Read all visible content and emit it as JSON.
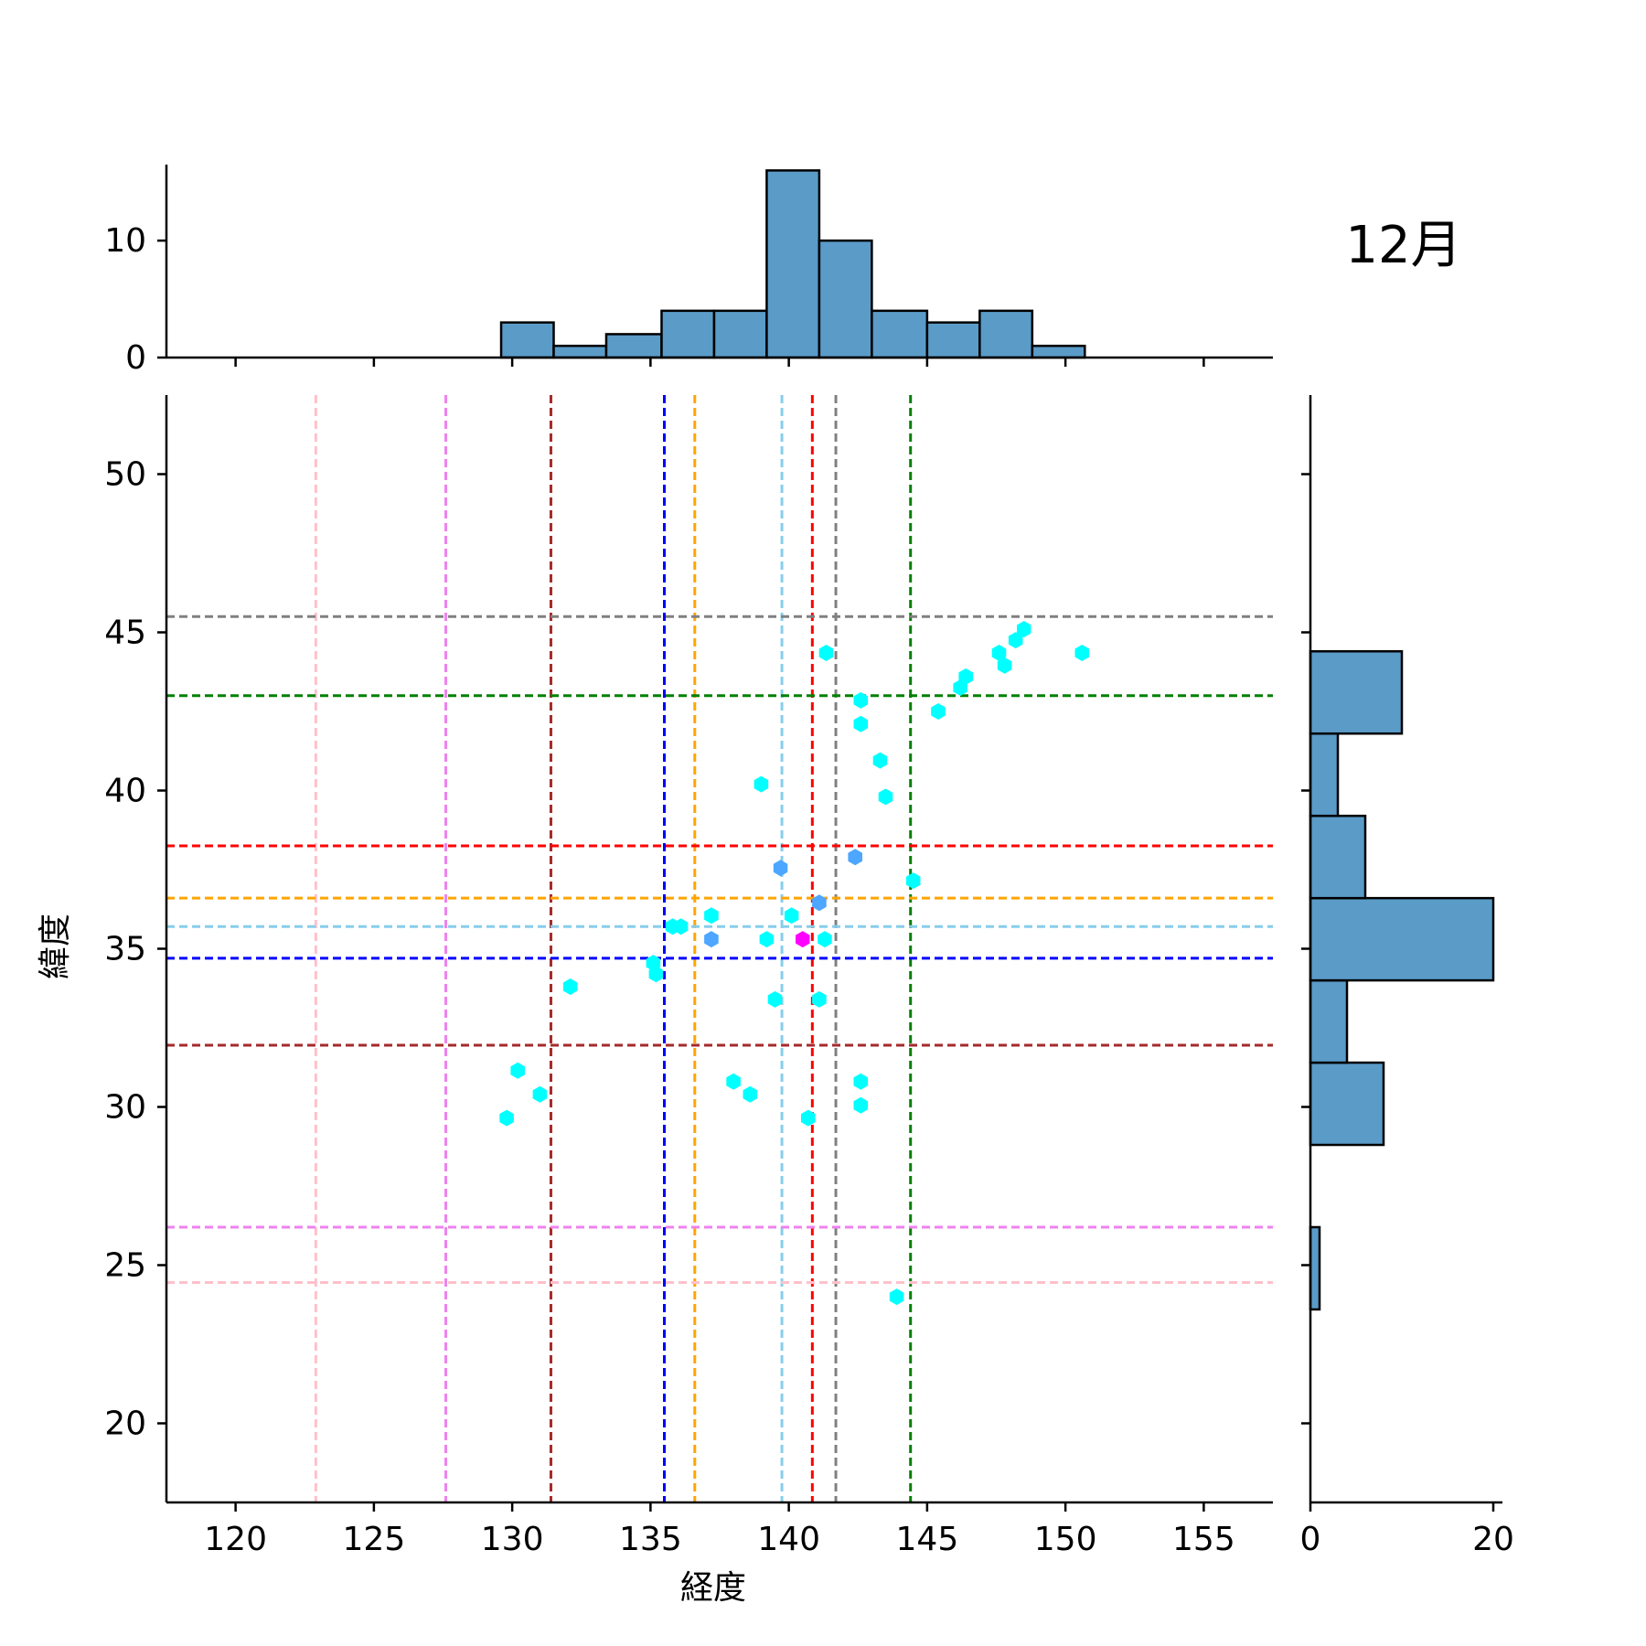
{
  "title": "12月",
  "chart_data": {
    "type": "scatter",
    "title": "12月",
    "xlabel": "経度",
    "ylabel": "緯度",
    "xlim": [
      117.5,
      157.5
    ],
    "ylim": [
      17.5,
      52.5
    ],
    "xticks": [
      120,
      125,
      130,
      135,
      140,
      145,
      150,
      155
    ],
    "yticks": [
      20,
      25,
      30,
      35,
      40,
      45,
      50
    ],
    "grid": false,
    "marker": "hexagon",
    "points": [
      {
        "x": 141.35,
        "y": 44.35,
        "color": "#00ffff"
      },
      {
        "x": 150.6,
        "y": 44.35,
        "color": "#00ffff"
      },
      {
        "x": 148.5,
        "y": 45.1,
        "color": "#00ffff"
      },
      {
        "x": 148.2,
        "y": 44.75,
        "color": "#00ffff"
      },
      {
        "x": 147.6,
        "y": 44.35,
        "color": "#00ffff"
      },
      {
        "x": 147.8,
        "y": 43.95,
        "color": "#00ffff"
      },
      {
        "x": 146.4,
        "y": 43.6,
        "color": "#00ffff"
      },
      {
        "x": 146.2,
        "y": 43.25,
        "color": "#00ffff"
      },
      {
        "x": 142.6,
        "y": 42.85,
        "color": "#00ffff"
      },
      {
        "x": 145.4,
        "y": 42.5,
        "color": "#00ffff"
      },
      {
        "x": 142.6,
        "y": 42.1,
        "color": "#00ffff"
      },
      {
        "x": 143.3,
        "y": 40.95,
        "color": "#00ffff"
      },
      {
        "x": 139.0,
        "y": 40.2,
        "color": "#00ffff"
      },
      {
        "x": 143.5,
        "y": 39.8,
        "color": "#00ffff"
      },
      {
        "x": 142.4,
        "y": 37.9,
        "color": "#4da6ff"
      },
      {
        "x": 139.7,
        "y": 37.55,
        "color": "#4da6ff"
      },
      {
        "x": 144.5,
        "y": 37.15,
        "color": "#00ffff"
      },
      {
        "x": 141.1,
        "y": 36.45,
        "color": "#4da6ff"
      },
      {
        "x": 137.2,
        "y": 36.05,
        "color": "#00ffff"
      },
      {
        "x": 140.1,
        "y": 36.05,
        "color": "#00ffff"
      },
      {
        "x": 135.8,
        "y": 35.7,
        "color": "#00ffff"
      },
      {
        "x": 136.1,
        "y": 35.7,
        "color": "#00ffff"
      },
      {
        "x": 137.2,
        "y": 35.3,
        "color": "#4da6ff"
      },
      {
        "x": 139.2,
        "y": 35.3,
        "color": "#00ffff"
      },
      {
        "x": 140.5,
        "y": 35.3,
        "color": "#ff00ff"
      },
      {
        "x": 141.3,
        "y": 35.3,
        "color": "#00ffff"
      },
      {
        "x": 135.1,
        "y": 34.55,
        "color": "#00ffff"
      },
      {
        "x": 135.2,
        "y": 34.2,
        "color": "#00ffff"
      },
      {
        "x": 132.1,
        "y": 33.8,
        "color": "#00ffff"
      },
      {
        "x": 139.5,
        "y": 33.4,
        "color": "#00ffff"
      },
      {
        "x": 141.1,
        "y": 33.4,
        "color": "#00ffff"
      },
      {
        "x": 130.2,
        "y": 31.15,
        "color": "#00ffff"
      },
      {
        "x": 138.0,
        "y": 30.8,
        "color": "#00ffff"
      },
      {
        "x": 142.6,
        "y": 30.8,
        "color": "#00ffff"
      },
      {
        "x": 131.0,
        "y": 30.4,
        "color": "#00ffff"
      },
      {
        "x": 138.6,
        "y": 30.4,
        "color": "#00ffff"
      },
      {
        "x": 142.6,
        "y": 30.05,
        "color": "#00ffff"
      },
      {
        "x": 129.8,
        "y": 29.65,
        "color": "#00ffff"
      },
      {
        "x": 140.7,
        "y": 29.65,
        "color": "#00ffff"
      },
      {
        "x": 143.9,
        "y": 24.0,
        "color": "#00ffff"
      }
    ],
    "vlines": [
      {
        "x": 122.9,
        "color": "pink"
      },
      {
        "x": 127.6,
        "color": "violet"
      },
      {
        "x": 131.4,
        "color": "brown"
      },
      {
        "x": 135.5,
        "color": "blue"
      },
      {
        "x": 136.6,
        "color": "orange"
      },
      {
        "x": 139.75,
        "color": "skyblue"
      },
      {
        "x": 140.85,
        "color": "red"
      },
      {
        "x": 141.7,
        "color": "gray"
      },
      {
        "x": 144.4,
        "color": "green"
      }
    ],
    "hlines": [
      {
        "y": 45.5,
        "color": "gray"
      },
      {
        "y": 43.0,
        "color": "green"
      },
      {
        "y": 38.25,
        "color": "red"
      },
      {
        "y": 36.6,
        "color": "orange"
      },
      {
        "y": 35.7,
        "color": "skyblue"
      },
      {
        "y": 34.7,
        "color": "blue"
      },
      {
        "y": 31.95,
        "color": "brown"
      },
      {
        "y": 26.2,
        "color": "violet"
      },
      {
        "y": 24.45,
        "color": "pink"
      }
    ],
    "marginal_x": {
      "type": "histogram",
      "yticks": [
        0,
        10
      ],
      "ylim": [
        0,
        16.5
      ],
      "bins": [
        {
          "x0": 129.6,
          "x1": 131.5,
          "count": 3
        },
        {
          "x0": 131.5,
          "x1": 133.4,
          "count": 1
        },
        {
          "x0": 133.4,
          "x1": 135.4,
          "count": 2
        },
        {
          "x0": 135.4,
          "x1": 137.3,
          "count": 4
        },
        {
          "x0": 137.3,
          "x1": 139.2,
          "count": 4
        },
        {
          "x0": 139.2,
          "x1": 141.1,
          "count": 16
        },
        {
          "x0": 141.1,
          "x1": 143.0,
          "count": 10
        },
        {
          "x0": 143.0,
          "x1": 145.0,
          "count": 4
        },
        {
          "x0": 145.0,
          "x1": 146.9,
          "count": 3
        },
        {
          "x0": 146.9,
          "x1": 148.8,
          "count": 4
        },
        {
          "x0": 148.8,
          "x1": 150.7,
          "count": 1
        }
      ]
    },
    "marginal_y": {
      "type": "histogram",
      "xticks": [
        0,
        20
      ],
      "xlim": [
        0,
        21
      ],
      "bins": [
        {
          "y0": 23.6,
          "y1": 26.2,
          "count": 1
        },
        {
          "y0": 26.2,
          "y1": 28.8,
          "count": 0
        },
        {
          "y0": 28.8,
          "y1": 31.4,
          "count": 8
        },
        {
          "y0": 31.4,
          "y1": 34.0,
          "count": 4
        },
        {
          "y0": 34.0,
          "y1": 36.6,
          "count": 20
        },
        {
          "y0": 36.6,
          "y1": 39.2,
          "count": 6
        },
        {
          "y0": 39.2,
          "y1": 41.8,
          "count": 3
        },
        {
          "y0": 41.8,
          "y1": 44.4,
          "count": 10
        }
      ]
    },
    "bar_color": "#5a9bc8"
  }
}
